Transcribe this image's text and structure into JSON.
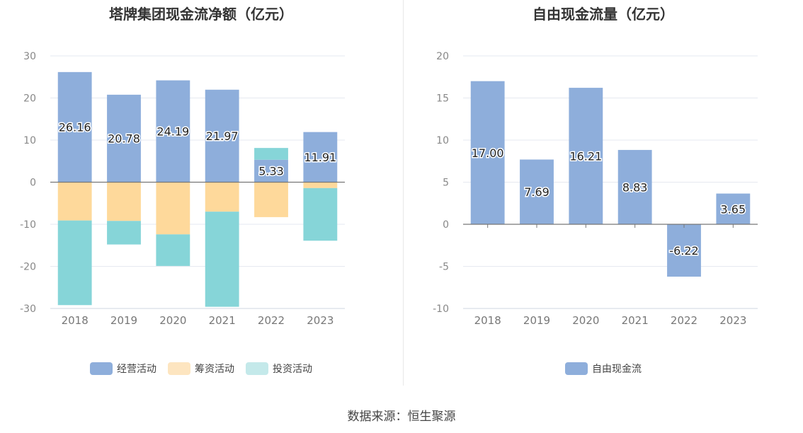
{
  "chart_data": [
    {
      "type": "bar",
      "stacked": true,
      "title": "塔牌集团现金流净额（亿元）",
      "categories": [
        "2018",
        "2019",
        "2020",
        "2021",
        "2022",
        "2023"
      ],
      "ylim": [
        -30,
        30
      ],
      "yticks": [
        30,
        20,
        10,
        0,
        -10,
        -20,
        -30
      ],
      "grid": true,
      "legend_position": "bottom",
      "series": [
        {
          "name": "经营活动",
          "color": "#8eaedb",
          "values": [
            26.16,
            20.78,
            24.19,
            21.97,
            5.33,
            11.91
          ]
        },
        {
          "name": "筹资活动",
          "color": "#fed99b",
          "values": [
            -9.1,
            -9.2,
            -12.4,
            -7.0,
            -8.3,
            -1.4
          ]
        },
        {
          "name": "投资活动",
          "color": "#86d5d8",
          "values": [
            -20.1,
            -5.6,
            -7.5,
            -22.6,
            2.8,
            -12.5
          ]
        }
      ],
      "data_labels": [
        "26.16",
        "20.78",
        "24.19",
        "21.97",
        "5.33",
        "11.91"
      ],
      "legend_swatch_colors": [
        "#8eaedb",
        "#fde5c0",
        "#c4e9ea"
      ]
    },
    {
      "type": "bar",
      "title": "自由现金流量（亿元）",
      "categories": [
        "2018",
        "2019",
        "2020",
        "2021",
        "2022",
        "2023"
      ],
      "ylim": [
        -10,
        20
      ],
      "yticks": [
        20,
        15,
        10,
        5,
        0,
        -5,
        -10
      ],
      "grid": true,
      "legend_position": "bottom",
      "series": [
        {
          "name": "自由现金流",
          "color": "#8eaedb",
          "values": [
            17.0,
            7.69,
            16.21,
            8.83,
            -6.22,
            3.65
          ]
        }
      ],
      "data_labels": [
        "17.00",
        "7.69",
        "16.21",
        "8.83",
        "-6.22",
        "3.65"
      ],
      "legend_swatch_colors": [
        "#8eaedb"
      ]
    }
  ],
  "source": "数据来源：恒生聚源"
}
